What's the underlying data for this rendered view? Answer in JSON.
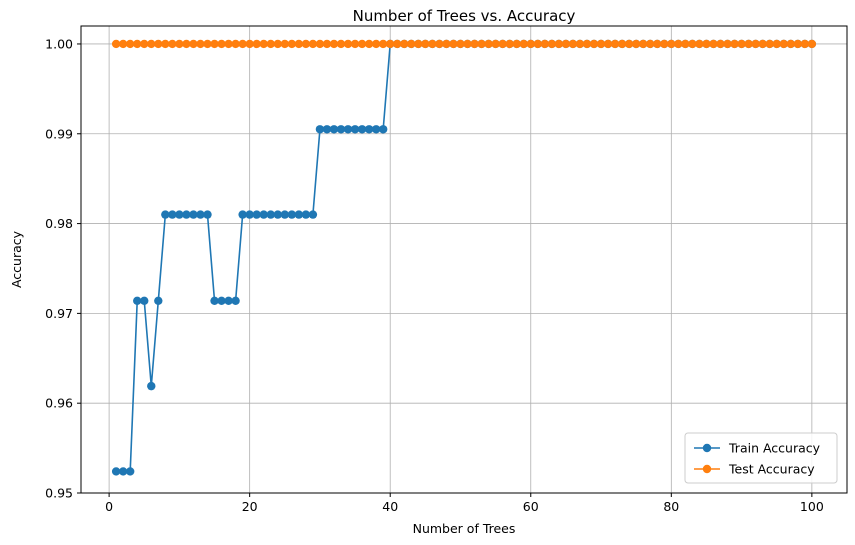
{
  "chart_data": {
    "type": "line",
    "title": "Number of Trees vs. Accuracy",
    "xlabel": "Number of Trees",
    "ylabel": "Accuracy",
    "xlim": [
      -4,
      105
    ],
    "ylim": [
      0.95,
      1.002
    ],
    "xticks": [
      0,
      20,
      40,
      60,
      80,
      100
    ],
    "xtick_labels": [
      "0",
      "20",
      "40",
      "60",
      "80",
      "100"
    ],
    "yticks": [
      0.95,
      0.96,
      0.97,
      0.98,
      0.99,
      1.0
    ],
    "ytick_labels": [
      "0.95",
      "0.96",
      "0.97",
      "0.98",
      "0.99",
      "1.00"
    ],
    "grid": true,
    "legend_position": "bottom-right",
    "x": [
      1,
      2,
      3,
      4,
      5,
      6,
      7,
      8,
      9,
      10,
      11,
      12,
      13,
      14,
      15,
      16,
      17,
      18,
      19,
      20,
      21,
      22,
      23,
      24,
      25,
      26,
      27,
      28,
      29,
      30,
      31,
      32,
      33,
      34,
      35,
      36,
      37,
      38,
      39,
      40,
      41,
      42,
      43,
      44,
      45,
      46,
      47,
      48,
      49,
      50,
      51,
      52,
      53,
      54,
      55,
      56,
      57,
      58,
      59,
      60,
      61,
      62,
      63,
      64,
      65,
      66,
      67,
      68,
      69,
      70,
      71,
      72,
      73,
      74,
      75,
      76,
      77,
      78,
      79,
      80,
      81,
      82,
      83,
      84,
      85,
      86,
      87,
      88,
      89,
      90,
      91,
      92,
      93,
      94,
      95,
      96,
      97,
      98,
      99,
      100
    ],
    "series": [
      {
        "name": "Train Accuracy",
        "color": "#1f77b4",
        "values": [
          0.9524,
          0.9524,
          0.9524,
          0.9714,
          0.9714,
          0.9619,
          0.9714,
          0.981,
          0.981,
          0.981,
          0.981,
          0.981,
          0.981,
          0.981,
          0.9714,
          0.9714,
          0.9714,
          0.9714,
          0.981,
          0.981,
          0.981,
          0.981,
          0.981,
          0.981,
          0.981,
          0.981,
          0.981,
          0.981,
          0.981,
          0.9905,
          0.9905,
          0.9905,
          0.9905,
          0.9905,
          0.9905,
          0.9905,
          0.9905,
          0.9905,
          0.9905,
          1.0,
          1.0,
          1.0,
          1.0,
          1.0,
          1.0,
          1.0,
          1.0,
          1.0,
          1.0,
          1.0,
          1.0,
          1.0,
          1.0,
          1.0,
          1.0,
          1.0,
          1.0,
          1.0,
          1.0,
          1.0,
          1.0,
          1.0,
          1.0,
          1.0,
          1.0,
          1.0,
          1.0,
          1.0,
          1.0,
          1.0,
          1.0,
          1.0,
          1.0,
          1.0,
          1.0,
          1.0,
          1.0,
          1.0,
          1.0,
          1.0,
          1.0,
          1.0,
          1.0,
          1.0,
          1.0,
          1.0,
          1.0,
          1.0,
          1.0,
          1.0,
          1.0,
          1.0,
          1.0,
          1.0,
          1.0,
          1.0,
          1.0,
          1.0,
          1.0,
          1.0
        ]
      },
      {
        "name": "Test Accuracy",
        "color": "#ff7f0e",
        "values": [
          1.0,
          1.0,
          1.0,
          1.0,
          1.0,
          1.0,
          1.0,
          1.0,
          1.0,
          1.0,
          1.0,
          1.0,
          1.0,
          1.0,
          1.0,
          1.0,
          1.0,
          1.0,
          1.0,
          1.0,
          1.0,
          1.0,
          1.0,
          1.0,
          1.0,
          1.0,
          1.0,
          1.0,
          1.0,
          1.0,
          1.0,
          1.0,
          1.0,
          1.0,
          1.0,
          1.0,
          1.0,
          1.0,
          1.0,
          1.0,
          1.0,
          1.0,
          1.0,
          1.0,
          1.0,
          1.0,
          1.0,
          1.0,
          1.0,
          1.0,
          1.0,
          1.0,
          1.0,
          1.0,
          1.0,
          1.0,
          1.0,
          1.0,
          1.0,
          1.0,
          1.0,
          1.0,
          1.0,
          1.0,
          1.0,
          1.0,
          1.0,
          1.0,
          1.0,
          1.0,
          1.0,
          1.0,
          1.0,
          1.0,
          1.0,
          1.0,
          1.0,
          1.0,
          1.0,
          1.0,
          1.0,
          1.0,
          1.0,
          1.0,
          1.0,
          1.0,
          1.0,
          1.0,
          1.0,
          1.0,
          1.0,
          1.0,
          1.0,
          1.0,
          1.0,
          1.0,
          1.0,
          1.0,
          1.0,
          1.0
        ]
      }
    ]
  }
}
